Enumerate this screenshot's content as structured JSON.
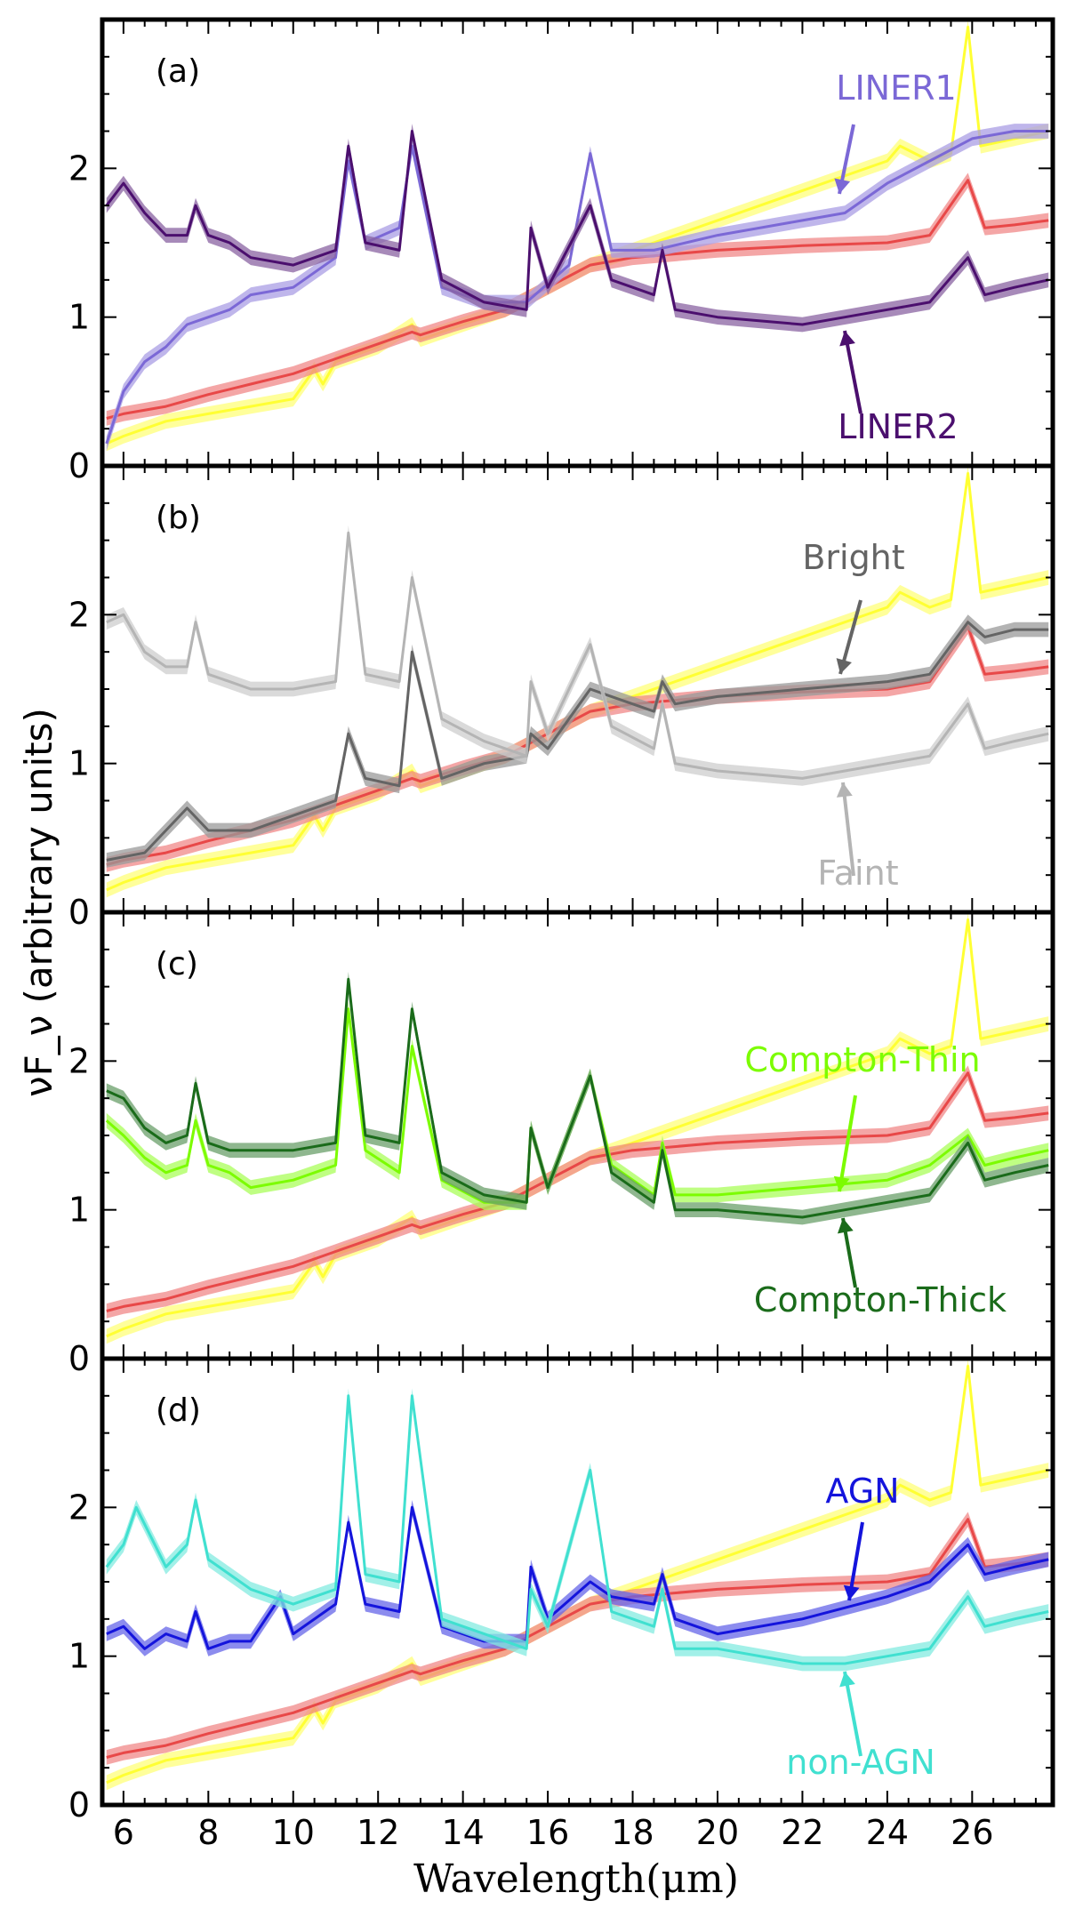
{
  "chart_data": {
    "type": "line",
    "ylabel": "νF_ν (arbitrary units)",
    "xlabel": "Wavelength(μm)",
    "xlim": [
      5.5,
      27.9
    ],
    "ylim": [
      0,
      3.0
    ],
    "x_ticks": [
      6,
      8,
      10,
      12,
      14,
      16,
      18,
      20,
      22,
      24,
      26
    ],
    "y_ticks": [
      0,
      1,
      2
    ],
    "grid": false,
    "shared_x_axis": true,
    "panels": [
      {
        "letter": "(a)",
        "reference_series": [
          "yellow",
          "red"
        ],
        "series": [
          {
            "name": "LINER1",
            "color": "#7b68d6",
            "shaded": true,
            "x": [
              5.6,
              6.0,
              6.5,
              7.0,
              7.5,
              8.0,
              8.5,
              9.0,
              10.0,
              11.0,
              11.3,
              11.7,
              12.5,
              12.8,
              13.5,
              14.5,
              15.5,
              16.5,
              17.0,
              17.5,
              18.5,
              20.0,
              22.0,
              23.0,
              24.0,
              25.0,
              26.0,
              27.0,
              27.8
            ],
            "y": [
              0.15,
              0.5,
              0.7,
              0.8,
              0.95,
              1.0,
              1.05,
              1.15,
              1.2,
              1.4,
              2.05,
              1.5,
              1.6,
              2.15,
              1.2,
              1.1,
              1.1,
              1.35,
              2.1,
              1.45,
              1.45,
              1.55,
              1.65,
              1.7,
              1.9,
              2.05,
              2.2,
              2.25,
              2.25
            ]
          },
          {
            "name": "LINER2",
            "color": "#4b0f6e",
            "shaded": true,
            "x": [
              5.6,
              6.0,
              6.5,
              7.0,
              7.5,
              7.7,
              8.0,
              8.5,
              9.0,
              10.0,
              11.0,
              11.3,
              11.7,
              12.5,
              12.8,
              13.5,
              14.5,
              15.5,
              15.6,
              16.0,
              17.0,
              17.5,
              18.5,
              18.7,
              19.0,
              20.0,
              22.0,
              23.0,
              24.0,
              25.0,
              25.9,
              26.3,
              27.0,
              27.8
            ],
            "y": [
              1.75,
              1.9,
              1.7,
              1.55,
              1.55,
              1.75,
              1.55,
              1.5,
              1.4,
              1.35,
              1.45,
              2.15,
              1.5,
              1.45,
              2.25,
              1.25,
              1.1,
              1.05,
              1.6,
              1.2,
              1.75,
              1.25,
              1.15,
              1.45,
              1.05,
              1.0,
              0.95,
              1.0,
              1.05,
              1.1,
              1.4,
              1.15,
              1.2,
              1.25
            ]
          }
        ]
      },
      {
        "letter": "(b)",
        "reference_series": [
          "yellow",
          "red"
        ],
        "series": [
          {
            "name": "Bright",
            "color": "#646464",
            "shaded": true,
            "x": [
              5.6,
              6.5,
              7.5,
              8.0,
              9.0,
              10.0,
              11.0,
              11.3,
              11.7,
              12.5,
              12.8,
              13.5,
              14.5,
              15.5,
              15.6,
              16.0,
              17.0,
              17.5,
              18.5,
              18.7,
              19.0,
              20.0,
              22.0,
              24.0,
              25.0,
              25.9,
              26.3,
              27.0,
              27.8
            ],
            "y": [
              0.35,
              0.4,
              0.7,
              0.55,
              0.55,
              0.65,
              0.75,
              1.2,
              0.9,
              0.85,
              1.75,
              0.9,
              1.0,
              1.05,
              1.2,
              1.1,
              1.5,
              1.45,
              1.35,
              1.55,
              1.4,
              1.45,
              1.5,
              1.55,
              1.6,
              1.95,
              1.85,
              1.9,
              1.9
            ]
          },
          {
            "name": "Faint",
            "color": "#b4b4b4",
            "shaded": true,
            "x": [
              5.6,
              6.0,
              6.5,
              7.0,
              7.5,
              7.7,
              8.0,
              8.5,
              9.0,
              10.0,
              11.0,
              11.3,
              11.7,
              12.5,
              12.8,
              13.5,
              14.5,
              15.5,
              15.6,
              16.0,
              17.0,
              17.5,
              18.5,
              18.7,
              19.0,
              20.0,
              22.0,
              23.0,
              24.0,
              25.0,
              25.9,
              26.3,
              27.0,
              27.8
            ],
            "y": [
              1.95,
              2.0,
              1.75,
              1.65,
              1.65,
              1.95,
              1.6,
              1.55,
              1.5,
              1.5,
              1.55,
              2.55,
              1.6,
              1.55,
              2.25,
              1.3,
              1.15,
              1.05,
              1.55,
              1.2,
              1.8,
              1.25,
              1.1,
              1.4,
              1.0,
              0.95,
              0.9,
              0.95,
              1.0,
              1.05,
              1.4,
              1.1,
              1.15,
              1.2
            ]
          }
        ]
      },
      {
        "letter": "(c)",
        "reference_series": [
          "yellow",
          "red"
        ],
        "series": [
          {
            "name": "Compton-Thin",
            "color": "#7cfc00",
            "shaded": true,
            "x": [
              5.6,
              6.0,
              6.5,
              7.0,
              7.5,
              7.7,
              8.0,
              8.5,
              9.0,
              10.0,
              11.0,
              11.3,
              11.7,
              12.5,
              12.8,
              13.5,
              14.5,
              15.5,
              15.6,
              16.0,
              17.0,
              17.5,
              18.5,
              18.7,
              19.0,
              20.0,
              22.0,
              24.0,
              25.0,
              25.9,
              26.3,
              27.0,
              27.8
            ],
            "y": [
              1.6,
              1.5,
              1.35,
              1.25,
              1.3,
              1.6,
              1.3,
              1.25,
              1.15,
              1.2,
              1.3,
              2.35,
              1.4,
              1.25,
              2.1,
              1.2,
              1.05,
              1.05,
              1.55,
              1.15,
              1.9,
              1.3,
              1.1,
              1.45,
              1.1,
              1.1,
              1.15,
              1.2,
              1.3,
              1.5,
              1.3,
              1.35,
              1.4
            ]
          },
          {
            "name": "Compton-Thick",
            "color": "#1a6b1a",
            "shaded": true,
            "x": [
              5.6,
              6.0,
              6.5,
              7.0,
              7.5,
              7.7,
              8.0,
              8.5,
              9.0,
              10.0,
              11.0,
              11.3,
              11.7,
              12.5,
              12.8,
              13.5,
              14.5,
              15.5,
              15.6,
              16.0,
              17.0,
              17.5,
              18.5,
              18.7,
              19.0,
              20.0,
              22.0,
              23.0,
              24.0,
              25.0,
              25.9,
              26.3,
              27.0,
              27.8
            ],
            "y": [
              1.8,
              1.75,
              1.55,
              1.45,
              1.5,
              1.85,
              1.45,
              1.4,
              1.4,
              1.4,
              1.45,
              2.55,
              1.5,
              1.45,
              2.35,
              1.25,
              1.1,
              1.05,
              1.55,
              1.15,
              1.9,
              1.25,
              1.05,
              1.4,
              1.0,
              1.0,
              0.95,
              1.0,
              1.05,
              1.1,
              1.45,
              1.2,
              1.25,
              1.3
            ]
          }
        ]
      },
      {
        "letter": "(d)",
        "reference_series": [
          "yellow",
          "red"
        ],
        "series": [
          {
            "name": "AGN",
            "color": "#1414dc",
            "shaded": true,
            "x": [
              5.6,
              6.0,
              6.5,
              7.0,
              7.5,
              7.7,
              8.0,
              8.5,
              9.0,
              9.7,
              10.0,
              11.0,
              11.3,
              11.7,
              12.5,
              12.8,
              13.5,
              14.5,
              15.5,
              15.6,
              16.0,
              17.0,
              17.5,
              18.5,
              18.7,
              19.0,
              20.0,
              22.0,
              24.0,
              25.0,
              25.9,
              26.3,
              27.0,
              27.8
            ],
            "y": [
              1.15,
              1.2,
              1.05,
              1.15,
              1.1,
              1.3,
              1.05,
              1.1,
              1.1,
              1.4,
              1.15,
              1.35,
              1.9,
              1.35,
              1.3,
              2.0,
              1.2,
              1.1,
              1.1,
              1.6,
              1.25,
              1.5,
              1.4,
              1.35,
              1.55,
              1.25,
              1.15,
              1.25,
              1.4,
              1.5,
              1.75,
              1.55,
              1.6,
              1.65
            ]
          },
          {
            "name": "non-AGN",
            "color": "#40e0d0",
            "shaded": true,
            "x": [
              5.6,
              6.0,
              6.3,
              7.0,
              7.5,
              7.7,
              8.0,
              8.5,
              9.0,
              10.0,
              11.0,
              11.3,
              11.7,
              12.5,
              12.8,
              13.5,
              14.5,
              15.5,
              15.6,
              16.0,
              17.0,
              17.5,
              18.5,
              18.7,
              19.0,
              20.0,
              22.0,
              23.0,
              24.0,
              25.0,
              25.9,
              26.3,
              27.0,
              27.8
            ],
            "y": [
              1.6,
              1.75,
              2.0,
              1.6,
              1.75,
              2.05,
              1.65,
              1.55,
              1.45,
              1.35,
              1.45,
              2.75,
              1.55,
              1.5,
              2.75,
              1.25,
              1.15,
              1.05,
              1.45,
              1.2,
              2.25,
              1.3,
              1.2,
              1.45,
              1.05,
              1.05,
              0.95,
              0.95,
              1.0,
              1.05,
              1.4,
              1.2,
              1.25,
              1.3
            ]
          }
        ]
      }
    ],
    "reference_series": {
      "yellow": {
        "color": "#ffff33",
        "x": [
          5.6,
          6.0,
          7.0,
          8.0,
          9.0,
          10.0,
          10.5,
          10.7,
          11.0,
          12.0,
          12.8,
          13.0,
          14.0,
          15.0,
          16.0,
          17.0,
          18.0,
          20.0,
          22.0,
          24.0,
          24.3,
          25.0,
          25.5,
          25.9,
          26.2,
          27.0,
          27.8
        ],
        "y": [
          0.15,
          0.2,
          0.3,
          0.35,
          0.4,
          0.45,
          0.65,
          0.55,
          0.7,
          0.8,
          0.95,
          0.85,
          0.95,
          1.05,
          1.2,
          1.35,
          1.45,
          1.65,
          1.85,
          2.05,
          2.15,
          2.05,
          2.1,
          2.95,
          2.15,
          2.2,
          2.25
        ]
      },
      "red": {
        "color": "#e84848",
        "x": [
          5.6,
          6.0,
          7.0,
          8.0,
          9.0,
          10.0,
          11.0,
          12.0,
          12.8,
          13.0,
          14.0,
          15.0,
          16.0,
          17.0,
          18.0,
          20.0,
          22.0,
          24.0,
          25.0,
          25.9,
          26.3,
          27.0,
          27.8
        ],
        "y": [
          0.32,
          0.35,
          0.4,
          0.48,
          0.55,
          0.62,
          0.72,
          0.82,
          0.9,
          0.88,
          0.97,
          1.05,
          1.2,
          1.35,
          1.4,
          1.45,
          1.48,
          1.5,
          1.55,
          1.92,
          1.6,
          1.62,
          1.65
        ]
      }
    }
  }
}
